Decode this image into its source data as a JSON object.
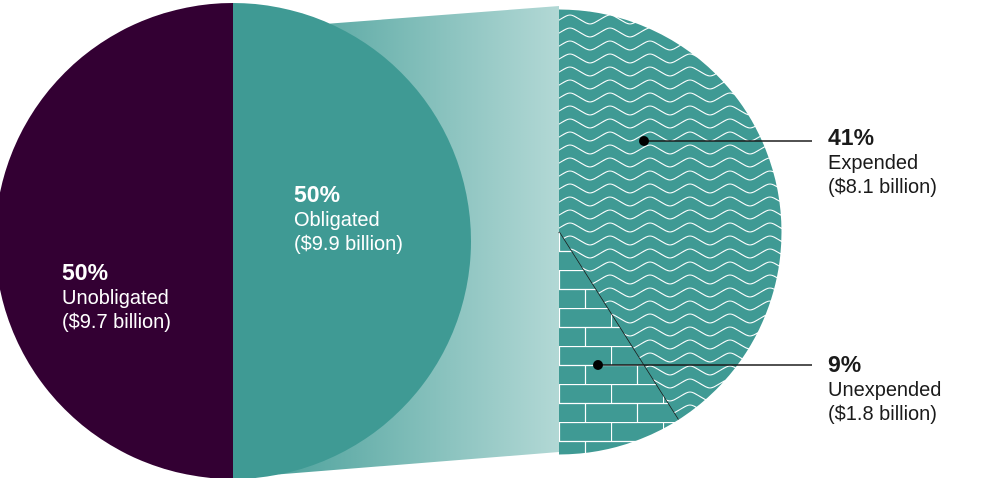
{
  "chart_data": {
    "type": "pie",
    "main_pie": {
      "slices": [
        {
          "label": "Unobligated",
          "percent": 50,
          "amount_text": "($9.7 billion)",
          "color": "#330033"
        },
        {
          "label": "Obligated",
          "percent": 50,
          "amount_text": "($9.9 billion)",
          "color": "#3f9a94"
        }
      ]
    },
    "breakdown_of": "Obligated",
    "breakdown_pie": {
      "slices": [
        {
          "label": "Expended",
          "percent": 41,
          "amount_text": "($8.1 billion)",
          "pattern": "waves",
          "color": "#3f9a94"
        },
        {
          "label": "Unexpended",
          "percent": 9,
          "amount_text": "($1.8 billion)",
          "pattern": "bricks",
          "color": "#3f9a94"
        }
      ]
    },
    "connector_gradient": [
      "#3f9a94",
      "#b2d8d5"
    ]
  },
  "labels": {
    "unobligated": {
      "pct": "50%",
      "name": "Unobligated",
      "amount": "($9.7 billion)"
    },
    "obligated": {
      "pct": "50%",
      "name": "Obligated",
      "amount": "($9.9 billion)"
    },
    "expended": {
      "pct": "41%",
      "name": "Expended",
      "amount": "($8.1 billion)"
    },
    "unexpended": {
      "pct": "9%",
      "name": "Unexpended",
      "amount": "($1.8 billion)"
    }
  }
}
